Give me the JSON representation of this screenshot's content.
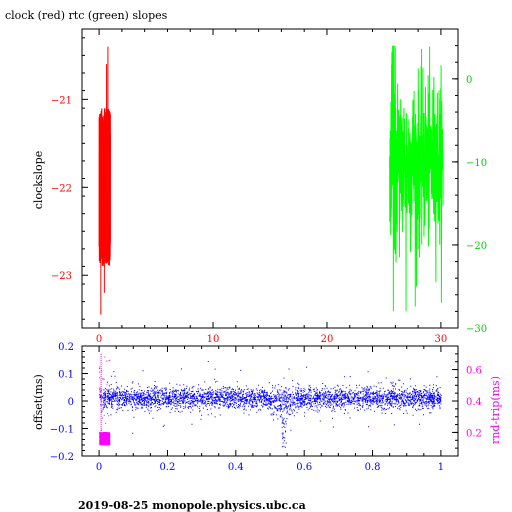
{
  "title": "clock (red) rtc (green) slopes",
  "footer": "2019-08-25  monopole.physics.ubc.ca",
  "colors": {
    "clock": "#ff0000",
    "rtc": "#00ff00",
    "rtc_axis": "#00cc00",
    "offset": "#0000ff",
    "roundtrip": "#ff00ff",
    "frame": "#000000"
  },
  "chart_data": [
    {
      "type": "line",
      "xlabel": "",
      "ylabel": "clockslope",
      "xlim": [
        -1.5,
        31.5
      ],
      "ylim": [
        -23.6,
        -20.2
      ],
      "x_ticks": [
        0,
        10,
        20,
        30
      ],
      "y_ticks": [
        -23,
        -22,
        -21
      ],
      "y2label": "",
      "y2lim": [
        -30,
        6
      ],
      "y2_ticks": [
        -30,
        -20,
        -10,
        0
      ],
      "grid": false,
      "series": [
        {
          "axis": "left",
          "color": "#ff0000",
          "x_range": [
            0.0,
            1.0
          ],
          "y_band": [
            -22.9,
            -21.1
          ],
          "y_extremes": [
            -23.45,
            -20.4
          ]
        },
        {
          "axis": "right",
          "color": "#00ff00",
          "x_range": [
            25.5,
            30.2
          ],
          "y_band": [
            -20,
            0
          ],
          "y_extremes": [
            -28,
            4
          ]
        }
      ]
    },
    {
      "type": "scatter",
      "xlabel": "",
      "ylabel": "offset(ms)",
      "xlim": [
        -0.05,
        1.05
      ],
      "ylim": [
        -0.2,
        0.2
      ],
      "x_ticks": [
        0,
        0.2,
        0.4,
        0.6,
        0.8,
        1
      ],
      "y_ticks": [
        -0.2,
        -0.1,
        0,
        0.1,
        0.2
      ],
      "y2label": "rnd-trip(ms)",
      "y2lim": [
        0.05,
        0.75
      ],
      "y2_ticks": [
        0.2,
        0.4,
        0.6
      ],
      "grid": false,
      "series": [
        {
          "axis": "left",
          "color": "#0000ff",
          "x_range": [
            0.0,
            1.0
          ],
          "y_center": 0.01,
          "y_spread": 0.08,
          "dip": {
            "x": 0.54,
            "y_min": -0.17
          }
        },
        {
          "axis": "right",
          "color": "#ff00ff",
          "x_range": [
            0.0,
            0.03
          ],
          "y_band": [
            0.12,
            0.2
          ],
          "y_extremes": [
            0.08,
            0.7
          ]
        }
      ]
    }
  ]
}
